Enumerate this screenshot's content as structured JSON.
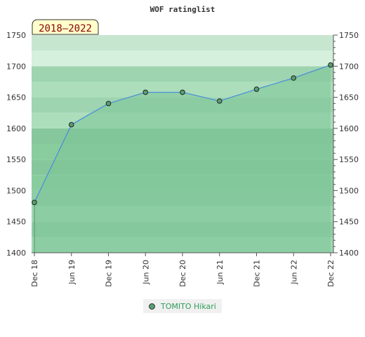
{
  "chart_data": {
    "type": "area",
    "title": "WOF ratinglist",
    "period_badge": "2018–2022",
    "categories": [
      "Dec 18",
      "Jun 19",
      "Dec 19",
      "Jun 20",
      "Dec 20",
      "Jun 21",
      "Dec 21",
      "Jun 22",
      "Dec 22"
    ],
    "series": [
      {
        "name": "TOMITO Hikari",
        "values": [
          1481,
          1606,
          1640,
          1658,
          1658,
          1644,
          1663,
          1681,
          1702
        ]
      }
    ],
    "ylim": [
      1400,
      1750
    ],
    "yticks": [
      1400,
      1450,
      1500,
      1550,
      1600,
      1650,
      1700,
      1750
    ],
    "y_axis": "both-sides",
    "grid": "horizontal-bands",
    "legend_position": "bottom-center"
  },
  "colors": {
    "area_fill": "#7ec497",
    "line": "#4a90d9",
    "marker": "#5a9e6f",
    "band_dark": "#74c08f",
    "band_light": "#d6ecdc",
    "badge_bg": "#ffffcc",
    "badge_text": "#8b0000",
    "legend_text": "#2e9e5a"
  }
}
